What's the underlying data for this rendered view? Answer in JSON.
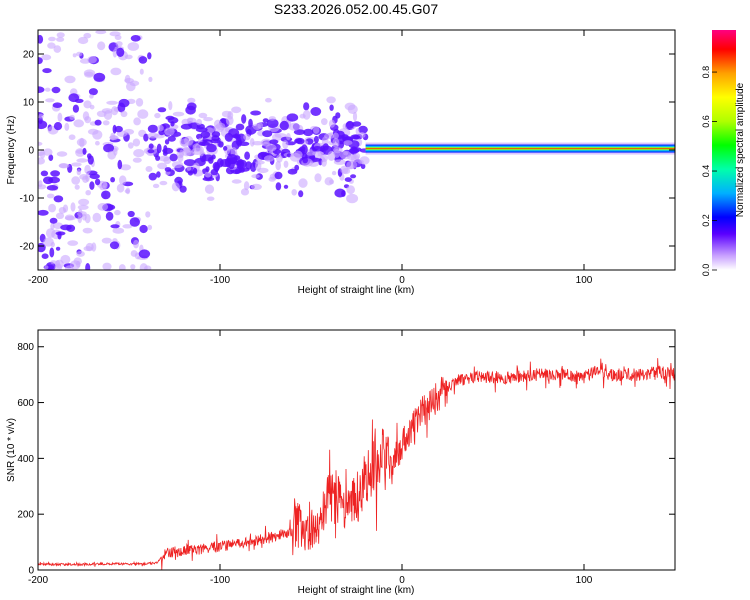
{
  "title": "S233.2026.052.00.45.G07",
  "colors": {
    "axis": "#000000",
    "snr_line": "#ee2222",
    "spectrum_low": "#cfa8ff",
    "spectrum_mid": "#5500ff",
    "spectrum_peak": "#ff2200"
  },
  "chart_data": [
    {
      "type": "heatmap",
      "title": "S233.2026.052.00.45.G07",
      "xlabel": "Height of straight line (km)",
      "ylabel": "Frequency (Hz)",
      "xlim": [
        -200,
        150
      ],
      "ylim": [
        -25,
        25
      ],
      "xticks": [
        -200,
        -100,
        0,
        100
      ],
      "yticks": [
        -20,
        -10,
        0,
        10,
        20
      ],
      "colorbar": {
        "label": "Normalized spectral amplitude",
        "range": [
          0,
          0.97
        ],
        "ticks": [
          0.0,
          0.2,
          0.4,
          0.6,
          0.8
        ],
        "tick_labels": [
          "0.0",
          "0.2",
          "0.4",
          "0.6",
          "0.8"
        ],
        "colormap": [
          "#ffffff",
          "#c8a0ff",
          "#5a00ff",
          "#0000ff",
          "#00b0ff",
          "#00ffaa",
          "#00ff00",
          "#b0ff00",
          "#ffff00",
          "#ffa000",
          "#ff0000",
          "#ff0080"
        ]
      },
      "description_regions": [
        {
          "x_range": [
            -200,
            -138
          ],
          "freq_range": [
            -25,
            25
          ],
          "amplitude": "low, scattered"
        },
        {
          "x_range": [
            -138,
            -20
          ],
          "freq_range": [
            -13,
            12
          ],
          "amplitude": "medium, patchy"
        },
        {
          "x_range": [
            -20,
            150
          ],
          "freq_center": 0.3,
          "amplitude": "high, narrow ridge"
        }
      ]
    },
    {
      "type": "line",
      "xlabel": "Height of straight line (km)",
      "ylabel": "SNR (10 * v/v)",
      "xlim": [
        -200,
        150
      ],
      "ylim": [
        0,
        860
      ],
      "xticks": [
        -200,
        -100,
        0,
        100
      ],
      "yticks": [
        0,
        200,
        400,
        600,
        800
      ],
      "series": [
        {
          "name": "SNR",
          "x": [
            -200,
            -180,
            -160,
            -140,
            -135,
            -130,
            -125,
            -110,
            -100,
            -90,
            -80,
            -70,
            -60,
            -55,
            -50,
            -45,
            -40,
            -35,
            -30,
            -25,
            -20,
            -15,
            -10,
            -5,
            0,
            5,
            10,
            15,
            20,
            25,
            30,
            40,
            50,
            60,
            70,
            80,
            90,
            100,
            108,
            110,
            120,
            130,
            140,
            150
          ],
          "y": [
            20,
            20,
            22,
            22,
            25,
            60,
            65,
            75,
            85,
            95,
            105,
            120,
            140,
            145,
            160,
            200,
            280,
            250,
            230,
            260,
            320,
            370,
            420,
            380,
            450,
            500,
            560,
            590,
            630,
            650,
            680,
            690,
            690,
            690,
            700,
            700,
            700,
            690,
            720,
            700,
            700,
            700,
            710,
            700
          ]
        }
      ]
    }
  ]
}
